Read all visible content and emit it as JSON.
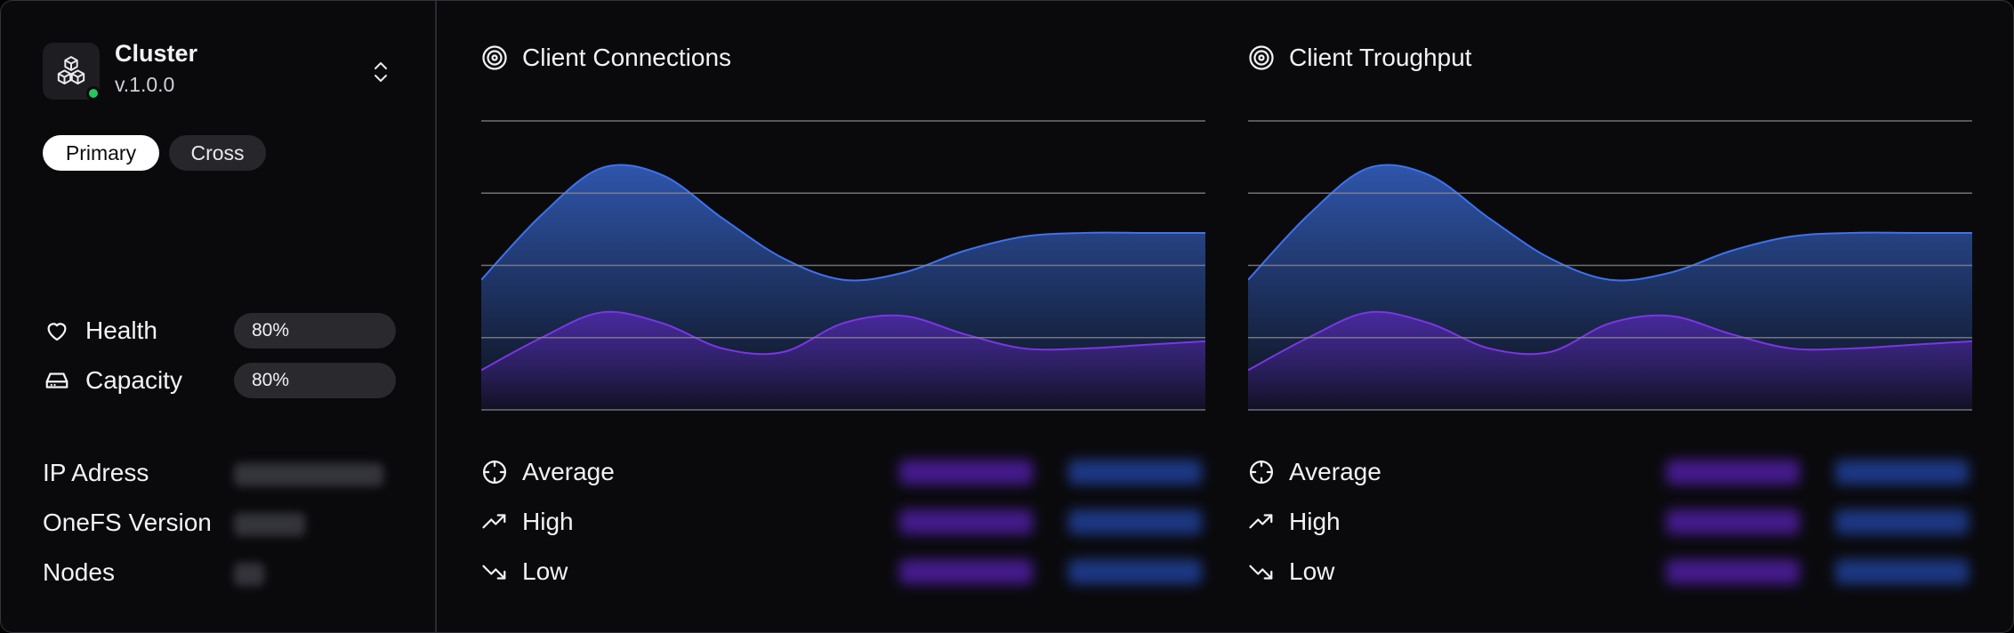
{
  "cluster": {
    "title": "Cluster",
    "version": "v.1.0.0",
    "status_color": "#22c55e",
    "tabs": [
      {
        "label": "Primary",
        "selected": true
      },
      {
        "label": "Cross",
        "selected": false
      }
    ]
  },
  "metrics": [
    {
      "label": "Health",
      "icon": "heart-icon",
      "value": "80%"
    },
    {
      "label": "Capacity",
      "icon": "hard-drive-icon",
      "value": "80%"
    }
  ],
  "info": [
    {
      "label": "IP Adress"
    },
    {
      "label": "OneFS Version"
    },
    {
      "label": "Nodes"
    }
  ],
  "panels": [
    {
      "title": "Client Connections",
      "icon": "target-icon",
      "legend": [
        {
          "label": "Average",
          "icon": "crosshair-icon"
        },
        {
          "label": "High",
          "icon": "trending-up-icon"
        },
        {
          "label": "Low",
          "icon": "trending-down-icon"
        }
      ]
    },
    {
      "title": "Client Troughput",
      "icon": "target-icon",
      "legend": [
        {
          "label": "Average",
          "icon": "crosshair-icon"
        },
        {
          "label": "High",
          "icon": "trending-up-icon"
        },
        {
          "label": "Low",
          "icon": "trending-down-icon"
        }
      ]
    }
  ],
  "colors": {
    "background": "#0a0a0d",
    "blue_series": "#3b6fe0",
    "purple_series": "#6d28d9",
    "gridline": "#8a8a92"
  },
  "chart_data": [
    {
      "type": "area",
      "title": "Client Connections",
      "x": [
        0,
        1,
        2,
        3,
        4,
        5,
        6,
        7,
        8,
        9,
        10,
        11,
        12
      ],
      "grid": true,
      "ylim": [
        0,
        4
      ],
      "series": [
        {
          "values": [
            1.8,
            2.7,
            3.35,
            3.25,
            2.65,
            2.1,
            1.8,
            1.9,
            2.2,
            2.4,
            2.45,
            2.45,
            2.45
          ]
        },
        {
          "values": [
            0.55,
            1.0,
            1.35,
            1.2,
            0.85,
            0.8,
            1.2,
            1.3,
            1.05,
            0.85,
            0.85,
            0.9,
            0.95
          ]
        }
      ]
    },
    {
      "type": "area",
      "title": "Client Troughput",
      "x": [
        0,
        1,
        2,
        3,
        4,
        5,
        6,
        7,
        8,
        9,
        10,
        11,
        12
      ],
      "grid": true,
      "ylim": [
        0,
        4
      ],
      "series": [
        {
          "values": [
            1.8,
            2.7,
            3.35,
            3.25,
            2.65,
            2.1,
            1.8,
            1.9,
            2.2,
            2.4,
            2.45,
            2.45,
            2.45
          ]
        },
        {
          "values": [
            0.55,
            1.0,
            1.35,
            1.2,
            0.85,
            0.8,
            1.2,
            1.3,
            1.05,
            0.85,
            0.85,
            0.9,
            0.95
          ]
        }
      ]
    }
  ]
}
